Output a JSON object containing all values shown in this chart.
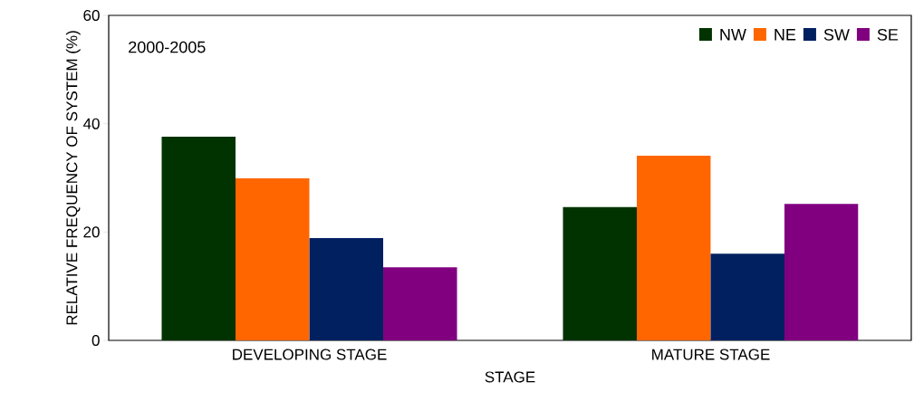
{
  "chart_data": {
    "type": "bar",
    "xlabel": "STAGE",
    "ylabel": "RELATIVE FREQUENCY OF SYSTEM (%)",
    "annotations": [
      "2000-2005"
    ],
    "categories": [
      "DEVELOPING STAGE",
      "MATURE STAGE"
    ],
    "series": [
      {
        "name": "NW",
        "color": "#003300",
        "values": [
          37.6,
          24.6
        ]
      },
      {
        "name": "NE",
        "color": "#ff6600",
        "values": [
          29.9,
          34.1
        ]
      },
      {
        "name": "SW",
        "color": "#002060",
        "values": [
          18.9,
          16.0
        ]
      },
      {
        "name": "SE",
        "color": "#800080",
        "values": [
          13.5,
          25.2
        ]
      }
    ],
    "ylim": [
      0,
      60
    ],
    "yticks": [
      0,
      20,
      40,
      60
    ],
    "legend": "top right",
    "grid": false
  }
}
